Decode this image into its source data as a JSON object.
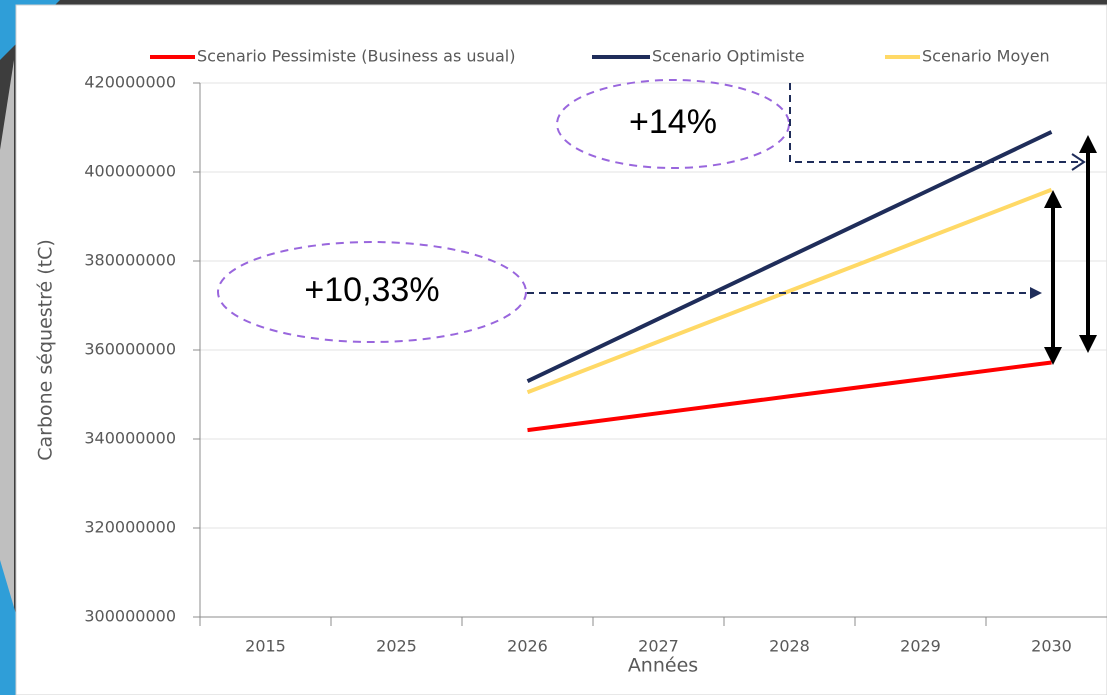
{
  "chart_data": {
    "type": "line",
    "x_label": "Années",
    "y_label": "Carbone séquestré (tC)",
    "categories": [
      "2015",
      "2025",
      "2026",
      "2027",
      "2028",
      "2029",
      "2030"
    ],
    "series": [
      {
        "name": "Scenario Pessimiste (Business as usual)",
        "color": "#ff0000",
        "values": [
          null,
          null,
          342000000,
          345800000,
          349600000,
          353400000,
          357200000
        ]
      },
      {
        "name": "Scenario Optimiste",
        "color": "#1f2d5a",
        "values": [
          null,
          null,
          353000000,
          367000000,
          381000000,
          395000000,
          409000000
        ]
      },
      {
        "name": "Scenario Moyen",
        "color": "#ffd966",
        "values": [
          null,
          null,
          350500000,
          361875000,
          373250000,
          384625000,
          396000000
        ]
      }
    ],
    "ylim": [
      300000000,
      420000000
    ],
    "yticks": [
      300000000,
      320000000,
      340000000,
      360000000,
      380000000,
      400000000,
      420000000
    ],
    "grid": true,
    "legend": "top",
    "annotations": [
      "+14%",
      "+10,33%"
    ]
  }
}
